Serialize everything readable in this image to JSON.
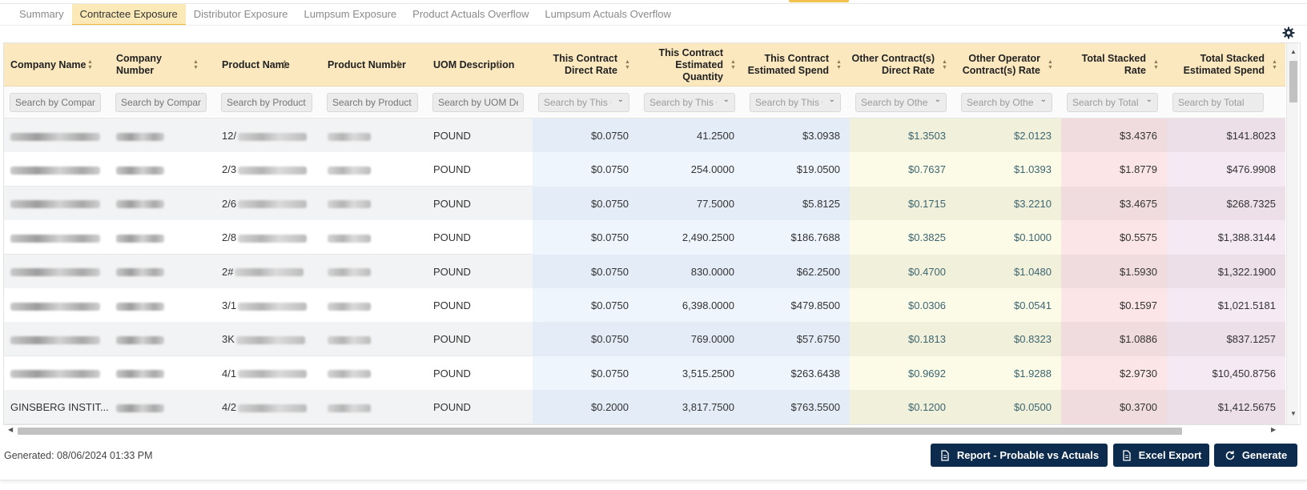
{
  "tabs": [
    "Summary",
    "Contractee Exposure",
    "Distributor Exposure",
    "Lumpsum Exposure",
    "Product Actuals Overflow",
    "Lumpsum Actuals Overflow"
  ],
  "active_tab": "Contractee Exposure",
  "columns": [
    {
      "label": "Company Name",
      "filter": "Search by Company Name"
    },
    {
      "label": "Company Number",
      "filter": "Search by Company Number"
    },
    {
      "label": "Product Name",
      "filter": "Search by Product Name"
    },
    {
      "label": "Product Number",
      "filter": "Search by Product Number"
    },
    {
      "label": "UOM Description",
      "filter": "Search by UOM Description"
    },
    {
      "label": "This Contract Direct Rate",
      "filter": "Search by This Contract Direct Rate"
    },
    {
      "label": "This Contract Estimated Quantity",
      "filter": "Search by This Contract Estimated Quantity"
    },
    {
      "label": "This Contract Estimated Spend",
      "filter": "Search by This Contract Estimated Spend"
    },
    {
      "label": "Other Contract(s) Direct Rate",
      "filter": "Search by Other Contract(s) Direct Rate"
    },
    {
      "label": "Other Operator Contract(s) Rate",
      "filter": "Search by Other Operator Contract(s) Rate"
    },
    {
      "label": "Total Stacked Rate",
      "filter": "Search by Total Stacked Rate"
    },
    {
      "label": "Total Stacked Estimated Spend",
      "filter": "Search by Total Stacked Estimated Spend"
    }
  ],
  "rows": [
    {
      "company": "",
      "product_prefix": "12/",
      "uom": "POUND",
      "direct_rate": "$0.0750",
      "est_qty": "41.2500",
      "est_spend": "$3.0938",
      "other_rate": "$1.3503",
      "other_op_rate": "$2.0123",
      "stacked_rate": "$3.4376",
      "stacked_spend": "$141.8023"
    },
    {
      "company": "",
      "product_prefix": "2/3",
      "uom": "POUND",
      "direct_rate": "$0.0750",
      "est_qty": "254.0000",
      "est_spend": "$19.0500",
      "other_rate": "$0.7637",
      "other_op_rate": "$1.0393",
      "stacked_rate": "$1.8779",
      "stacked_spend": "$476.9908"
    },
    {
      "company": "",
      "product_prefix": "2/6",
      "uom": "POUND",
      "direct_rate": "$0.0750",
      "est_qty": "77.5000",
      "est_spend": "$5.8125",
      "other_rate": "$0.1715",
      "other_op_rate": "$3.2210",
      "stacked_rate": "$3.4675",
      "stacked_spend": "$268.7325"
    },
    {
      "company": "",
      "product_prefix": "2/8",
      "uom": "POUND",
      "direct_rate": "$0.0750",
      "est_qty": "2,490.2500",
      "est_spend": "$186.7688",
      "other_rate": "$0.3825",
      "other_op_rate": "$0.1000",
      "stacked_rate": "$0.5575",
      "stacked_spend": "$1,388.3144"
    },
    {
      "company": "",
      "product_prefix": "2#",
      "uom": "POUND",
      "direct_rate": "$0.0750",
      "est_qty": "830.0000",
      "est_spend": "$62.2500",
      "other_rate": "$0.4700",
      "other_op_rate": "$1.0480",
      "stacked_rate": "$1.5930",
      "stacked_spend": "$1,322.1900"
    },
    {
      "company": "",
      "product_prefix": "3/1",
      "uom": "POUND",
      "direct_rate": "$0.0750",
      "est_qty": "6,398.0000",
      "est_spend": "$479.8500",
      "other_rate": "$0.0306",
      "other_op_rate": "$0.0541",
      "stacked_rate": "$0.1597",
      "stacked_spend": "$1,021.5181"
    },
    {
      "company": "",
      "product_prefix": "3K",
      "uom": "POUND",
      "direct_rate": "$0.0750",
      "est_qty": "769.0000",
      "est_spend": "$57.6750",
      "other_rate": "$0.1813",
      "other_op_rate": "$0.8323",
      "stacked_rate": "$1.0886",
      "stacked_spend": "$837.1257"
    },
    {
      "company": "",
      "product_prefix": "4/1",
      "uom": "POUND",
      "direct_rate": "$0.0750",
      "est_qty": "3,515.2500",
      "est_spend": "$263.6438",
      "other_rate": "$0.9692",
      "other_op_rate": "$1.9288",
      "stacked_rate": "$2.9730",
      "stacked_spend": "$10,450.8756"
    },
    {
      "company": "GINSBERG INSTIT...",
      "product_prefix": "4/2",
      "uom": "POUND",
      "direct_rate": "$0.2000",
      "est_qty": "3,817.7500",
      "est_spend": "$763.5500",
      "other_rate": "$0.1200",
      "other_op_rate": "$0.0500",
      "stacked_rate": "$0.3700",
      "stacked_spend": "$1,412.5675"
    }
  ],
  "generated_text": "Generated: 08/06/2024 01:33 PM",
  "buttons": {
    "report": "Report - Probable vs Actuals",
    "excel": "Excel Export",
    "generate": "Generate"
  },
  "colors": {
    "header_bg": "#fbe8bf",
    "tab_active_bg": "#fbe9b8",
    "tab_active_border": "#efb836",
    "button_bg": "#0c2b4d",
    "contract_band": "#e8f1fb",
    "other_band": "#fbf9e0",
    "stacked_band": "#f9e2e4",
    "stacked_spend_band": "#f3e8ef",
    "value_teal": "#3d6570"
  },
  "icons": [
    "settings-gear-icon",
    "sort-icon",
    "chevron-down-icon",
    "document-icon",
    "refresh-icon"
  ]
}
